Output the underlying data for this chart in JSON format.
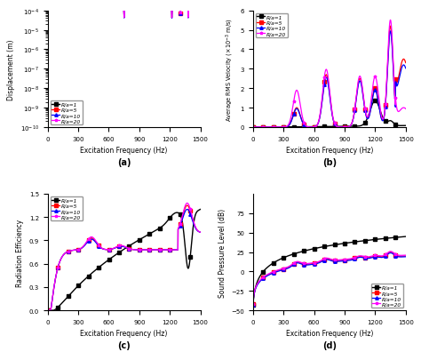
{
  "colors": [
    "black",
    "red",
    "blue",
    "magenta"
  ],
  "labels": [
    "R/a=1",
    "R/a=5",
    "R/a=10",
    "R/a=20"
  ],
  "markers": [
    "s",
    "s",
    "^",
    "*"
  ],
  "xlabel": "Excitation Frequency (Hz)",
  "ylabel_a": "Displacement (m)",
  "ylabel_b": "Average RMS Velocity (×10⁻³ m/s)",
  "ylabel_c": "Radiation Efficiency",
  "ylabel_d": "Sound Pressure Level (dB)",
  "subplot_labels": [
    "(a)",
    "(b)",
    "(c)",
    "(d)"
  ]
}
